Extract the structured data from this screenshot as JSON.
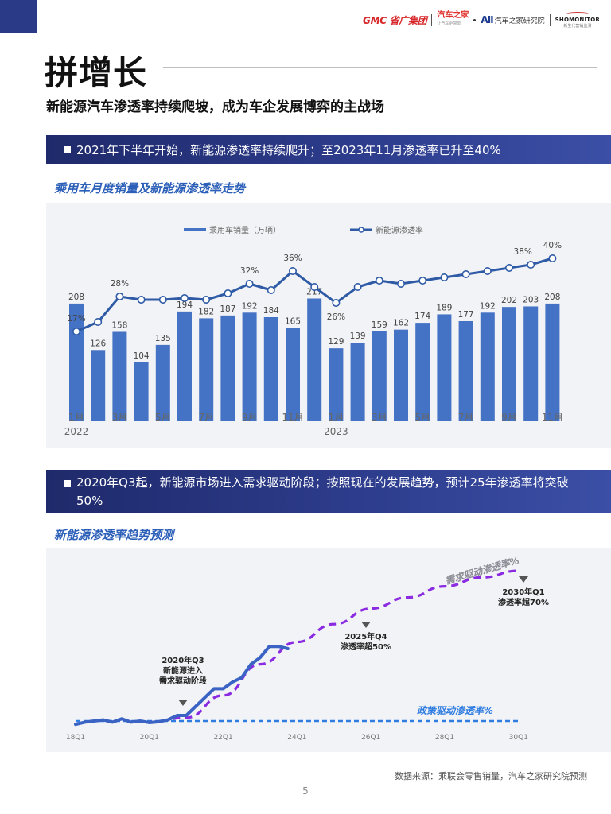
{
  "header": {
    "logos": {
      "gmc": "GMC 省广集团",
      "autohome": "汽车之家",
      "autohome_small": "让汽车更简单",
      "research": "汽车之家研究院",
      "shomonitor": "SHOMONITOR",
      "shomonitor_small": "新生代营销监测"
    },
    "title": "拼增长",
    "subtitle": "新能源汽车渗透率持续爬坡，成为车企发展博弈的主战场"
  },
  "section1": {
    "banner": "2021年下半年开始，新能源渗透率持续爬升；至2023年11月渗透率已升至40%",
    "chart_title": "乘用车月度销量及新能源渗透率走势"
  },
  "section2": {
    "banner": "2020年Q3起，新能源市场进入需求驱动阶段；按照现在的发展趋势，预计25年渗透率将突破50%",
    "chart_title": "新能源渗透率趋势预测"
  },
  "footer": {
    "source": "数据来源：乘联会零售销量，汽车之家研究院预测",
    "page": "5"
  },
  "colors": {
    "bar": "#4472c4",
    "line": "#2e5aa6",
    "actual": "#3a63c4",
    "forecast": "#8a2be2",
    "policy": "#2f7de0",
    "banner": "#2b3a86"
  },
  "chart_data": [
    {
      "type": "bar",
      "series": [
        {
          "name": "乘用车销量（万辆）",
          "values": [
            208,
            126,
            158,
            104,
            135,
            194,
            182,
            187,
            192,
            184,
            165,
            217,
            129,
            139,
            159,
            162,
            174,
            189,
            177,
            192,
            202,
            203,
            208
          ]
        },
        {
          "name": "新能源渗透率",
          "values": [
            17,
            20,
            28,
            27,
            27,
            27.5,
            27,
            29,
            32,
            30,
            36,
            31,
            26,
            31,
            33,
            32,
            33,
            34,
            35,
            36,
            37,
            38,
            40
          ],
          "data_labels": {
            "0": "17%",
            "2": "28%",
            "8": "32%",
            "10": "36%",
            "12": "26%",
            "21": "38%",
            "22": "40%"
          }
        }
      ],
      "x_tick_labels": [
        "1月",
        "3月",
        "5月",
        "7月",
        "9月",
        "11月",
        "1月",
        "3月",
        "5月",
        "7月",
        "9月",
        "11月"
      ],
      "x_tick_positions": [
        0,
        2,
        4,
        6,
        8,
        10,
        12,
        14,
        16,
        18,
        20,
        22
      ],
      "year_labels": [
        {
          "at": 0,
          "label": "2022"
        },
        {
          "at": 12,
          "label": "2023"
        }
      ],
      "legend": "top"
    },
    {
      "type": "line",
      "x_tick_labels": [
        "18Q1",
        "20Q1",
        "22Q1",
        "24Q1",
        "26Q1",
        "28Q1",
        "30Q1"
      ],
      "xlim": [
        0,
        48
      ],
      "series": [
        {
          "name": "actual",
          "x": [
            0,
            1,
            2,
            3,
            4,
            5,
            6,
            7,
            8,
            9,
            10,
            11,
            12,
            13,
            14,
            15,
            16,
            17,
            18,
            19,
            20,
            21,
            22,
            23
          ],
          "y": [
            1,
            2,
            2.5,
            3,
            2,
            3.5,
            2,
            2.5,
            1.8,
            2.2,
            3,
            5,
            5,
            9,
            13,
            17,
            17,
            20,
            22,
            28,
            31,
            36,
            36,
            35
          ]
        },
        {
          "name": "需求驱动渗透率%",
          "x": [
            8,
            12,
            16,
            20,
            24,
            28,
            32,
            36,
            40,
            44,
            48
          ],
          "y": [
            2,
            4,
            14,
            28,
            38,
            46,
            53,
            58,
            63,
            67,
            70
          ]
        },
        {
          "name": "政策驱动渗透率%",
          "x": [
            0,
            48
          ],
          "y": [
            2.5,
            2.5
          ]
        }
      ],
      "annotations": [
        {
          "x": 10.5,
          "y": 5,
          "label": "2020年Q3 新能源进入 需求驱动阶段",
          "lines": [
            "2020年Q3",
            "新能源进入",
            "需求驱动阶段"
          ]
        },
        {
          "x": 28,
          "y": 46,
          "label": "2025年Q4 渗透率超50%",
          "lines": [
            "2025年Q4",
            "渗透率超50%"
          ]
        },
        {
          "x": 44,
          "y": 67,
          "label": "2030年Q1 渗透率超70%",
          "lines": [
            "2030年Q1",
            "渗透率超70%"
          ]
        }
      ],
      "series_labels": {
        "demand": "需求驱动渗透率%",
        "policy": "政策驱动渗透率%"
      }
    }
  ]
}
